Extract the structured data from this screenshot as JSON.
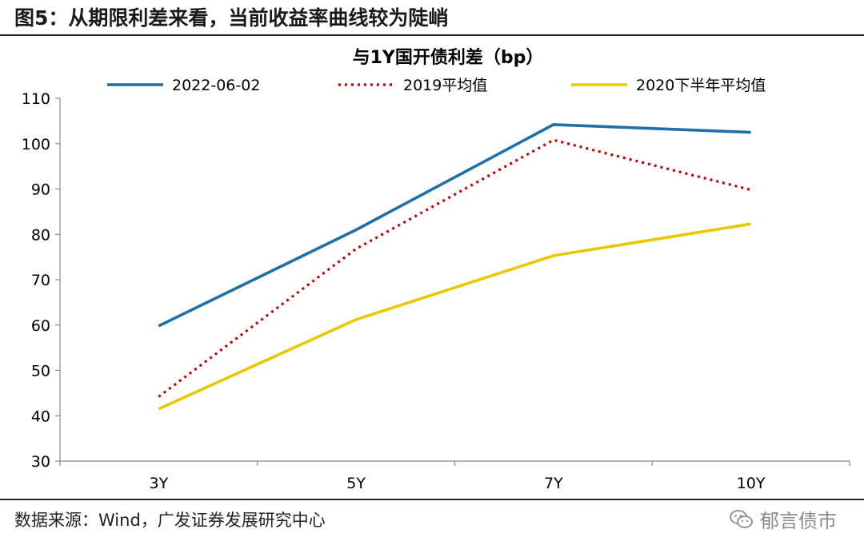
{
  "header": {
    "figure_title": "图5：从期限利差来看，当前收益率曲线较为陡峭"
  },
  "footer": {
    "source": "数据来源：Wind，广发证券发展研究中心",
    "brand": "郁言债市",
    "brand_icon": "wechat-icon"
  },
  "colors": {
    "series_2022": "#1f6fa8",
    "series_2019": "#c00000",
    "series_2020": "#e8c800",
    "axis": "#888888"
  },
  "chart_data": {
    "type": "line",
    "title": "与1Y国开债利差（bp）",
    "categories": [
      "3Y",
      "5Y",
      "7Y",
      "10Y"
    ],
    "ylim": [
      30,
      110
    ],
    "yticks": [
      "30",
      "40",
      "50",
      "60",
      "70",
      "80",
      "90",
      "100",
      "110"
    ],
    "xlabel": "",
    "ylabel": "",
    "grid": false,
    "legend_position": "top",
    "series": [
      {
        "name": "2022-06-02",
        "values": [
          59.8,
          81.0,
          104.2,
          102.5
        ],
        "style": "solid",
        "color": "#1f6fa8"
      },
      {
        "name": "2019平均值",
        "values": [
          44.2,
          76.8,
          100.8,
          89.8
        ],
        "style": "dotted",
        "color": "#c00000"
      },
      {
        "name": "2020下半年平均值",
        "values": [
          41.5,
          61.2,
          75.3,
          82.3
        ],
        "style": "solid",
        "color": "#e8c800"
      }
    ]
  }
}
